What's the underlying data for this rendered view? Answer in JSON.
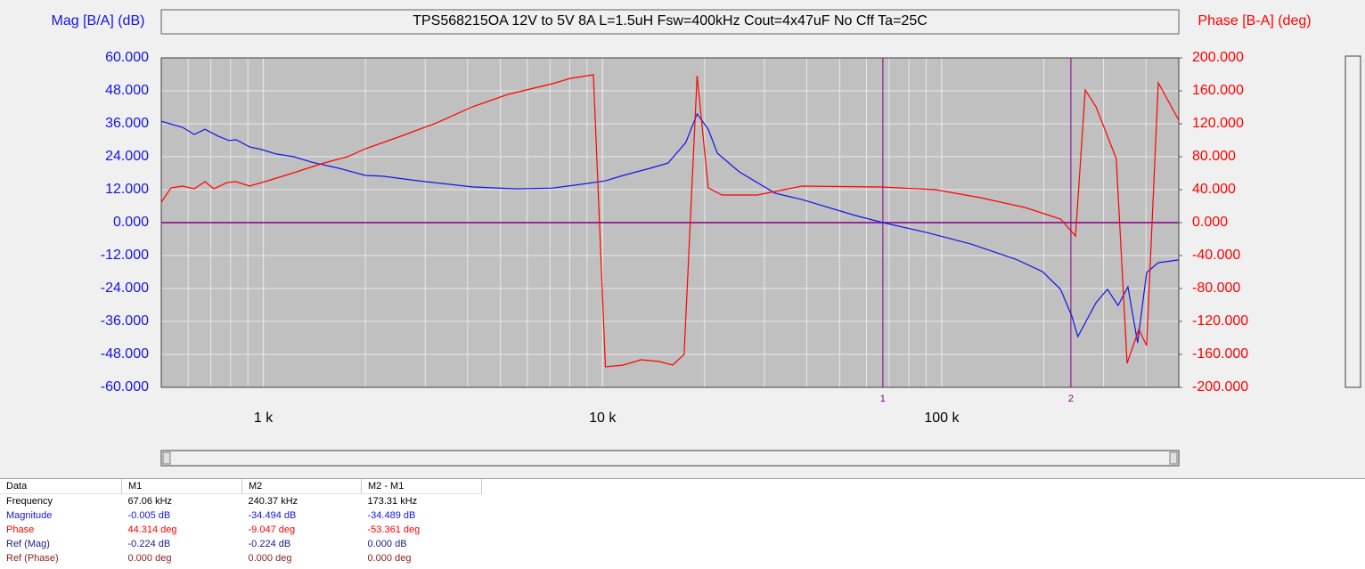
{
  "chart_data": {
    "type": "line",
    "title": "TPS568215OA  12V to 5V 8A  L=1.5uH  Fsw=400kHz  Cout=4x47uF  No Cff  Ta=25C",
    "ylabel": "Mag [B/A] (dB)",
    "y2label": "Phase [B-A] (deg)",
    "log_x": true,
    "grid": true,
    "zero_line": true,
    "xlim": [
      500,
      500000
    ],
    "xticks": [
      {
        "value": 1000,
        "label": "1 k"
      },
      {
        "value": 10000,
        "label": "10 k"
      },
      {
        "value": 100000,
        "label": "100 k"
      }
    ],
    "ylim": [
      -60,
      60
    ],
    "yticks": [
      {
        "value": -60,
        "label": "-60.000"
      },
      {
        "value": -48,
        "label": "-48.000"
      },
      {
        "value": -36,
        "label": "-36.000"
      },
      {
        "value": -24,
        "label": "-24.000"
      },
      {
        "value": -12,
        "label": "-12.000"
      },
      {
        "value": 0,
        "label": "0.000"
      },
      {
        "value": 12,
        "label": "12.000"
      },
      {
        "value": 24,
        "label": "24.000"
      },
      {
        "value": 36,
        "label": "36.000"
      },
      {
        "value": 48,
        "label": "48.000"
      },
      {
        "value": 60,
        "label": "60.000"
      }
    ],
    "y2lim": [
      -200,
      200
    ],
    "y2ticks": [
      {
        "value": -200,
        "label": "-200.000"
      },
      {
        "value": -160,
        "label": "-160.000"
      },
      {
        "value": -120,
        "label": "-120.000"
      },
      {
        "value": -80,
        "label": "-80.000"
      },
      {
        "value": -40,
        "label": "-40.000"
      },
      {
        "value": 0,
        "label": "0.000"
      },
      {
        "value": 40,
        "label": "40.000"
      },
      {
        "value": 80,
        "label": "80.000"
      },
      {
        "value": 120,
        "label": "120.000"
      },
      {
        "value": 160,
        "label": "160.000"
      },
      {
        "value": 200,
        "label": "200.000"
      }
    ],
    "markers": [
      {
        "label": "1",
        "x": 67060
      },
      {
        "label": "2",
        "x": 240370
      }
    ],
    "series": [
      {
        "name": "Magnitude",
        "color": "#1414e6",
        "axis": "y",
        "x": [
          500,
          578,
          625,
          673,
          736,
          792,
          831,
          910,
          990,
          1090,
          1230,
          1390,
          1670,
          2000,
          2250,
          2870,
          4130,
          5590,
          7120,
          9070,
          10200,
          11500,
          13800,
          15600,
          17600,
          19000,
          20500,
          21800,
          25300,
          32300,
          38700,
          55600,
          67100,
          90200,
          122000,
          165000,
          198000,
          224000,
          242000,
          252000,
          285000,
          308000,
          331000,
          354000,
          378000,
          402000,
          435000,
          500000
        ],
        "values": [
          36.9,
          34.7,
          32.1,
          34,
          31.5,
          29.9,
          30.2,
          27.6,
          26.6,
          25,
          24,
          22,
          19.8,
          17.2,
          16.9,
          15.2,
          13,
          12.3,
          12.6,
          14.3,
          15.2,
          17.2,
          19.8,
          21.7,
          29.2,
          39.6,
          34,
          25.3,
          18.5,
          10.7,
          8.4,
          2.6,
          0,
          -3.6,
          -7.8,
          -13.3,
          -17.8,
          -24.3,
          -34.1,
          -41.5,
          -29.2,
          -24.3,
          -30.2,
          -23.4,
          -43.8,
          -18.2,
          -14.6,
          -13.6
        ]
      },
      {
        "name": "Phase",
        "color": "#ff0000",
        "axis": "y2",
        "x": [
          500,
          534,
          578,
          625,
          673,
          714,
          782,
          831,
          910,
          1030,
          1230,
          1480,
          1770,
          2000,
          2540,
          3240,
          4130,
          5260,
          7120,
          8030,
          9400,
          10200,
          11500,
          13000,
          14700,
          16100,
          17400,
          19000,
          20500,
          22500,
          28600,
          34300,
          38700,
          66700,
          95800,
          130000,
          176000,
          224000,
          248000,
          265000,
          285000,
          327000,
          352000,
          381000,
          402000,
          435000,
          500000
        ],
        "values": [
          24.9,
          42.2,
          44.3,
          41.1,
          49.7,
          41.1,
          48.6,
          49.7,
          44.3,
          50.8,
          60.5,
          71.4,
          80,
          89.7,
          104.9,
          121,
          140.5,
          155.7,
          168.6,
          175.1,
          179.5,
          -175.1,
          -173,
          -166.5,
          -168.6,
          -173,
          -160,
          178.4,
          42.2,
          33.5,
          33.5,
          40,
          44.3,
          43.2,
          40,
          30.3,
          18.4,
          4.3,
          -16.2,
          161,
          140.5,
          77.8,
          -170.8,
          -129.7,
          -149.2,
          169.7,
          124.3
        ]
      }
    ]
  },
  "table": {
    "header": [
      "Data",
      "M1",
      "M2",
      "M2 - M1"
    ],
    "rows": [
      {
        "color": "#000000",
        "cells": [
          "Frequency",
          "67.06 kHz",
          "240.37 kHz",
          "173.31 kHz"
        ]
      },
      {
        "color": "#1414e6",
        "cells": [
          "Magnitude",
          "-0.005 dB",
          "-34.494 dB",
          "-34.489 dB"
        ]
      },
      {
        "color": "#ff0000",
        "cells": [
          "Phase",
          "44.314 deg",
          "-9.047 deg",
          "-53.361 deg"
        ]
      },
      {
        "color": "#1c1c8c",
        "cells": [
          "Ref (Mag)",
          "-0.224 dB",
          "-0.224 dB",
          "0.000 dB"
        ]
      },
      {
        "color": "#8c1c1c",
        "cells": [
          "Ref (Phase)",
          "0.000 deg",
          "0.000 deg",
          "0.000 deg"
        ]
      }
    ]
  }
}
